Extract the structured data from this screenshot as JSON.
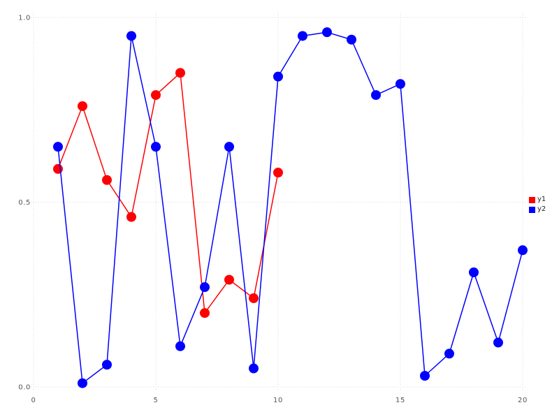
{
  "chart_data": {
    "type": "line",
    "title": "",
    "xlabel": "",
    "ylabel": "",
    "xlim": [
      0,
      20
    ],
    "ylim": [
      0.0,
      1.0
    ],
    "grid": "dotted",
    "legend_position": "right-middle",
    "x_ticks": [
      {
        "value": 0,
        "label": "0"
      },
      {
        "value": 5,
        "label": "5"
      },
      {
        "value": 10,
        "label": "10"
      },
      {
        "value": 15,
        "label": "15"
      },
      {
        "value": 20,
        "label": "20"
      }
    ],
    "y_ticks": [
      {
        "value": 0.0,
        "label": "0.0"
      },
      {
        "value": 0.5,
        "label": "0.5"
      },
      {
        "value": 1.0,
        "label": "1.0"
      }
    ],
    "series": [
      {
        "name": "y1",
        "color": "#ff0000",
        "marker": "circle",
        "x": [
          1,
          2,
          3,
          4,
          5,
          6,
          7,
          8,
          9,
          10
        ],
        "values": [
          0.59,
          0.76,
          0.56,
          0.46,
          0.79,
          0.85,
          0.2,
          0.29,
          0.24,
          0.58
        ]
      },
      {
        "name": "y2",
        "color": "#0000ff",
        "marker": "circle",
        "x": [
          1,
          2,
          3,
          4,
          5,
          6,
          7,
          8,
          9,
          10,
          11,
          12,
          13,
          14,
          15,
          16,
          17,
          18,
          19,
          20
        ],
        "values": [
          0.65,
          0.01,
          0.06,
          0.95,
          0.65,
          0.11,
          0.27,
          0.65,
          0.05,
          0.84,
          0.95,
          0.96,
          0.94,
          0.79,
          0.82,
          0.03,
          0.09,
          0.31,
          0.12,
          0.37
        ]
      }
    ],
    "colors": {
      "background": "#ffffff",
      "grid": "#d6d6de",
      "tick_label": "#555555",
      "legend_text": "#222222"
    }
  },
  "legend": {
    "items": [
      {
        "label": "y1",
        "color": "#ff0000"
      },
      {
        "label": "y2",
        "color": "#0000ff"
      }
    ]
  }
}
